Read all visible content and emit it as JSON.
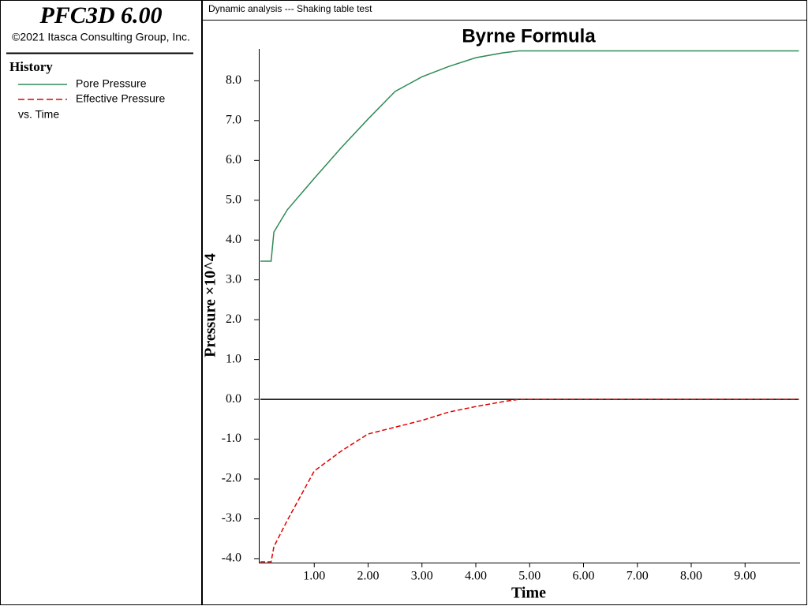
{
  "app": {
    "title": "PFC3D 6.00",
    "copyright": "©2021 Itasca Consulting Group, Inc."
  },
  "history_panel": {
    "heading": "History",
    "footer": "vs. Time"
  },
  "header": {
    "caption": "Dynamic analysis --- Shaking table test"
  },
  "chart_data": {
    "type": "line",
    "title": "Byrne Formula",
    "x_label": "Time",
    "y_label": "Pressure ×10^4",
    "x": [
      0,
      0.2,
      0.25,
      0.5,
      1.0,
      1.5,
      2.0,
      2.5,
      3.0,
      3.5,
      4.0,
      4.5,
      4.8,
      10
    ],
    "series": [
      {
        "name": "Pore Pressure",
        "color": "#2e8b57",
        "dash": false,
        "values": [
          3.47,
          3.47,
          4.2,
          4.76,
          5.55,
          6.32,
          7.04,
          7.73,
          8.1,
          8.36,
          8.58,
          8.7,
          8.75,
          8.75
        ]
      },
      {
        "name": "Effective Pressure",
        "color": "#e00000",
        "dash": true,
        "values": [
          -4.08,
          -4.08,
          -3.7,
          -3.04,
          -1.8,
          -1.3,
          -0.87,
          -0.7,
          -0.53,
          -0.32,
          -0.18,
          -0.06,
          0,
          0
        ]
      }
    ],
    "xlim": [
      0,
      10
    ],
    "ylim": [
      -4.1,
      8.8
    ],
    "xticks": [
      {
        "value": 1,
        "label": "1.00"
      },
      {
        "value": 2,
        "label": "2.00"
      },
      {
        "value": 3,
        "label": "3.00"
      },
      {
        "value": 4,
        "label": "4.00"
      },
      {
        "value": 5,
        "label": "5.00"
      },
      {
        "value": 6,
        "label": "6.00"
      },
      {
        "value": 7,
        "label": "7.00"
      },
      {
        "value": 8,
        "label": "8.00"
      },
      {
        "value": 9,
        "label": "9.00"
      }
    ],
    "yticks": [
      {
        "value": -4,
        "label": "-4.0"
      },
      {
        "value": -3,
        "label": "-3.0"
      },
      {
        "value": -2,
        "label": "-2.0"
      },
      {
        "value": -1,
        "label": "-1.0"
      },
      {
        "value": 0,
        "label": "0.0"
      },
      {
        "value": 1,
        "label": "1.0"
      },
      {
        "value": 2,
        "label": "2.0"
      },
      {
        "value": 3,
        "label": "3.0"
      },
      {
        "value": 4,
        "label": "4.0"
      },
      {
        "value": 5,
        "label": "5.0"
      },
      {
        "value": 6,
        "label": "6.0"
      },
      {
        "value": 7,
        "label": "7.0"
      },
      {
        "value": 8,
        "label": "8.0"
      }
    ],
    "zero_line": true
  }
}
